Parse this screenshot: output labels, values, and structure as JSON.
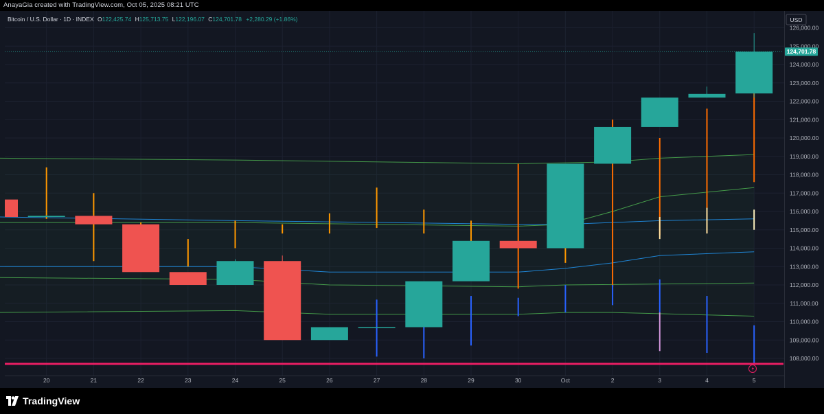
{
  "header": {
    "credit": "AnayaGia created with TradingView.com, Oct 05, 2025 08:21 UTC"
  },
  "legend": {
    "symbol": "Bitcoin / U.S. Dollar · 1D · INDEX",
    "o_label": "O",
    "o_value": "122,425.74",
    "h_label": "H",
    "h_value": "125,713.75",
    "l_label": "L",
    "l_value": "122,196.07",
    "c_label": "C",
    "c_value": "124,701.78",
    "change": "+2,280.29 (+1.86%)"
  },
  "currency": "USD",
  "last_price_label": "124,701.78",
  "brand": {
    "name": "TradingView"
  },
  "colors": {
    "up": "#26a69a",
    "down": "#ef5350",
    "background": "#131722",
    "ma_green": "#4caf50",
    "ma_blue": "#2962ff",
    "support_line": "#e91e63",
    "orange": "#ff9800"
  },
  "chart_data": {
    "type": "candlestick",
    "x_tick_labels": [
      "20",
      "21",
      "22",
      "23",
      "24",
      "25",
      "26",
      "27",
      "28",
      "29",
      "30",
      "Oct",
      "2",
      "3",
      "4",
      "5"
    ],
    "y_tick_labels": [
      "108,000.00",
      "109,000.00",
      "110,000.00",
      "111,000.00",
      "112,000.00",
      "113,000.00",
      "114,000.00",
      "115,000.00",
      "116,000.00",
      "117,000.00",
      "118,000.00",
      "119,000.00",
      "120,000.00",
      "121,000.00",
      "122,000.00",
      "123,000.00",
      "124,000.00",
      "125,000.00",
      "126,000.00"
    ],
    "ylim": [
      107500,
      126200
    ],
    "candles": [
      {
        "x": "19",
        "o": 116650,
        "h": 116650,
        "l": 115700,
        "c": 115700
      },
      {
        "x": "20",
        "o": 115700,
        "h": 115800,
        "l": 115700,
        "c": 115760
      },
      {
        "x": "21",
        "o": 115760,
        "h": 115800,
        "l": 115300,
        "c": 115300
      },
      {
        "x": "22",
        "o": 115300,
        "h": 115300,
        "l": 112700,
        "c": 112700
      },
      {
        "x": "23",
        "o": 112700,
        "h": 112700,
        "l": 112000,
        "c": 112000
      },
      {
        "x": "24",
        "o": 112000,
        "h": 113400,
        "l": 112000,
        "c": 113300
      },
      {
        "x": "25",
        "o": 113300,
        "h": 113600,
        "l": 109000,
        "c": 109000
      },
      {
        "x": "26",
        "o": 109000,
        "h": 109700,
        "l": 109000,
        "c": 109700
      },
      {
        "x": "27",
        "o": 109700,
        "h": 109700,
        "l": 109700,
        "c": 109700
      },
      {
        "x": "28",
        "o": 109700,
        "h": 112200,
        "l": 109700,
        "c": 112200
      },
      {
        "x": "29",
        "o": 112200,
        "h": 114400,
        "l": 112200,
        "c": 114400
      },
      {
        "x": "30",
        "o": 114400,
        "h": 114400,
        "l": 114000,
        "c": 114000
      },
      {
        "x": "Oct",
        "o": 114000,
        "h": 118600,
        "l": 114000,
        "c": 118600
      },
      {
        "x": "2",
        "o": 118600,
        "h": 120600,
        "l": 118600,
        "c": 120600
      },
      {
        "x": "3",
        "o": 120600,
        "h": 122200,
        "l": 120600,
        "c": 122200
      },
      {
        "x": "4",
        "o": 122200,
        "h": 122800,
        "l": 122200,
        "c": 122400
      },
      {
        "x": "5",
        "o": 122425.74,
        "h": 125713.75,
        "l": 122196.07,
        "c": 124701.78
      }
    ],
    "indicator_bars": [
      {
        "x": "20",
        "from": 115600,
        "to": 118400,
        "color": "#ff9800"
      },
      {
        "x": "21",
        "from": 113300,
        "to": 117000,
        "color": "#ff9800"
      },
      {
        "x": "22",
        "from": 112900,
        "to": 115400,
        "color": "#ff9800"
      },
      {
        "x": "23",
        "from": 113000,
        "to": 114500,
        "color": "#ff9800"
      },
      {
        "x": "24",
        "from": 114000,
        "to": 115500,
        "color": "#ff9800"
      },
      {
        "x": "25",
        "from": 114800,
        "to": 115300,
        "color": "#ff9800"
      },
      {
        "x": "26",
        "from": 114800,
        "to": 115900,
        "color": "#ff9800"
      },
      {
        "x": "27",
        "from": 115100,
        "to": 117300,
        "color": "#ff9800"
      },
      {
        "x": "28",
        "from": 114800,
        "to": 116100,
        "color": "#ff9800"
      },
      {
        "x": "29",
        "from": 113400,
        "to": 115500,
        "color": "#ff9800"
      },
      {
        "x": "30",
        "from": 111800,
        "to": 118600,
        "color": "#ff6d00"
      },
      {
        "x": "Oct",
        "from": 113200,
        "to": 118200,
        "color": "#ff9800"
      },
      {
        "x": "2",
        "from": 111900,
        "to": 121000,
        "color": "#ff6d00"
      },
      {
        "x": "3",
        "from": 114700,
        "to": 120000,
        "color": "#ff6d00"
      },
      {
        "x": "3",
        "from": 114500,
        "to": 115700,
        "color": "#ffe0a0"
      },
      {
        "x": "4",
        "from": 115600,
        "to": 121600,
        "color": "#ff6d00"
      },
      {
        "x": "4",
        "from": 114800,
        "to": 116200,
        "color": "#ffe0a0"
      },
      {
        "x": "5",
        "from": 117600,
        "to": 123200,
        "color": "#ff6d00"
      },
      {
        "x": "5",
        "from": 115000,
        "to": 116100,
        "color": "#fff3c0"
      },
      {
        "x": "27",
        "from": 108100,
        "to": 111200,
        "color": "#2962ff"
      },
      {
        "x": "28",
        "from": 108000,
        "to": 110000,
        "color": "#2962ff"
      },
      {
        "x": "29",
        "from": 108700,
        "to": 111400,
        "color": "#2962ff"
      },
      {
        "x": "30",
        "from": 110300,
        "to": 111300,
        "color": "#2962ff"
      },
      {
        "x": "Oct",
        "from": 110500,
        "to": 112000,
        "color": "#2962ff"
      },
      {
        "x": "2",
        "from": 110900,
        "to": 112000,
        "color": "#2962ff"
      },
      {
        "x": "3",
        "from": 110500,
        "to": 112300,
        "color": "#2962ff"
      },
      {
        "x": "3",
        "from": 108400,
        "to": 110500,
        "color": "#ce93d8"
      },
      {
        "x": "4",
        "from": 108300,
        "to": 111400,
        "color": "#2962ff"
      },
      {
        "x": "5",
        "from": 107700,
        "to": 109800,
        "color": "#2962ff"
      }
    ],
    "bands": [
      {
        "name": "upper",
        "color": "#4caf50",
        "points": [
          [
            "19",
            118900
          ],
          [
            "24",
            118800
          ],
          [
            "30",
            118600
          ],
          [
            "2",
            118700
          ],
          [
            "3",
            118900
          ],
          [
            "5",
            119100
          ]
        ]
      },
      {
        "name": "mid-upper",
        "color": "#4caf50",
        "points": [
          [
            "19",
            115400
          ],
          [
            "24",
            115400
          ],
          [
            "30",
            115200
          ],
          [
            "Oct",
            115300
          ],
          [
            "2",
            116000
          ],
          [
            "3",
            116800
          ],
          [
            "5",
            117300
          ]
        ]
      },
      {
        "name": "mid",
        "color": "#2196f3",
        "points": [
          [
            "19",
            115700
          ],
          [
            "24",
            115500
          ],
          [
            "30",
            115300
          ],
          [
            "Oct",
            115300
          ],
          [
            "2",
            115400
          ],
          [
            "3",
            115500
          ],
          [
            "5",
            115600
          ]
        ]
      },
      {
        "name": "mid-lower",
        "color": "#2196f3",
        "points": [
          [
            "19",
            113000
          ],
          [
            "24",
            113000
          ],
          [
            "26",
            112700
          ],
          [
            "30",
            112700
          ],
          [
            "Oct",
            112900
          ],
          [
            "2",
            113200
          ],
          [
            "3",
            113600
          ],
          [
            "5",
            113800
          ]
        ]
      },
      {
        "name": "lower",
        "color": "#4caf50",
        "points": [
          [
            "19",
            112400
          ],
          [
            "24",
            112300
          ],
          [
            "26",
            112000
          ],
          [
            "30",
            111900
          ],
          [
            "Oct",
            112000
          ],
          [
            "5",
            112100
          ]
        ]
      },
      {
        "name": "bottom",
        "color": "#4caf50",
        "points": [
          [
            "19",
            110500
          ],
          [
            "24",
            110600
          ],
          [
            "26",
            110400
          ],
          [
            "30",
            110400
          ],
          [
            "Oct",
            110500
          ],
          [
            "2",
            110500
          ],
          [
            "5",
            110300
          ]
        ]
      }
    ],
    "support_level": 107700,
    "last_price_line": 124701.78
  }
}
